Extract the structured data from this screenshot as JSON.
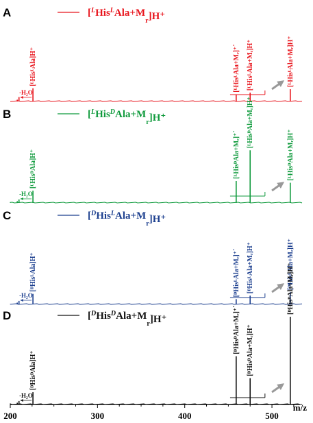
{
  "chart_data": {
    "type": "mass-spectrum",
    "xlim": [
      200,
      540
    ],
    "xticks": [
      200,
      300,
      400,
      500
    ],
    "xlabel": "m/z",
    "panels": [
      {
        "letter": "A",
        "color": "#e8141c",
        "legend": {
          "pre": "[",
          "sup1": "L",
          "mid1": "His",
          "sup2": "L",
          "mid2": "Ala+M",
          "sub": "r",
          "post": "]H⁺"
        },
        "loss_label": "-H₂O",
        "peaks": [
          {
            "mz": 208,
            "intensity": 0.02
          },
          {
            "mz": 210,
            "intensity": 0.05
          },
          {
            "mz": 226,
            "intensity": 0.15,
            "label": "[ᴸHisᴸAla]H⁺"
          },
          {
            "mz": 459,
            "intensity": 0.08,
            "label": "[ᴸHisᴸAla+Mᵣ]⁺˙"
          },
          {
            "mz": 475,
            "intensity": 0.1,
            "label": "[ᴸHisᴸAla+Mᵣ]H⁺"
          },
          {
            "mz": 521,
            "intensity": 0.14,
            "label": "[ᴸHisᴸAla+Mᵣ]H⁺"
          }
        ]
      },
      {
        "letter": "B",
        "color": "#0f9a3c",
        "legend": {
          "pre": "[",
          "sup1": "L",
          "mid1": "His",
          "sup2": "D",
          "mid2": "Ala+M",
          "sub": "r",
          "post": "]H⁺"
        },
        "loss_label": "-H₂O",
        "peaks": [
          {
            "mz": 208,
            "intensity": 0.02
          },
          {
            "mz": 210,
            "intensity": 0.04
          },
          {
            "mz": 226,
            "intensity": 0.14,
            "label": "[ᴸHisᴰAla]H⁺"
          },
          {
            "mz": 459,
            "intensity": 0.25,
            "label": "[ᴸHisᴰAla+Mᵣ]⁺˙"
          },
          {
            "mz": 475,
            "intensity": 0.6,
            "label": "[ᴸHisᴰAla+Mᵣ]H⁺"
          },
          {
            "mz": 521,
            "intensity": 0.23,
            "label": "[ᴸHisᴰAla+Mᵣ]H⁺"
          }
        ]
      },
      {
        "letter": "C",
        "color": "#1b3e8e",
        "legend": {
          "pre": "[",
          "sup1": "D",
          "mid1": "His",
          "sup2": "L",
          "mid2": "Ala+M",
          "sub": "r",
          "post": "]H⁺"
        },
        "loss_label": "-H₂O",
        "peaks": [
          {
            "mz": 208,
            "intensity": 0.02
          },
          {
            "mz": 210,
            "intensity": 0.04
          },
          {
            "mz": 226,
            "intensity": 0.12,
            "label": "[ᴰHisᴸAla]H⁺"
          },
          {
            "mz": 459,
            "intensity": 0.06,
            "label": "[ᴰHisᴸAla+Mᵣ]⁺˙"
          },
          {
            "mz": 475,
            "intensity": 0.1,
            "label": "[ᴰHisᴸAla+Mᵣ]H⁺"
          },
          {
            "mz": 521,
            "intensity": 0.14,
            "label": "[ᴰHisᴸAla+Mᵣ]H⁺"
          }
        ]
      },
      {
        "letter": "D",
        "color": "#111111",
        "legend": {
          "pre": "[",
          "sup1": "D",
          "mid1": "His",
          "sup2": "D",
          "mid2": "Ala+M",
          "sub": "r",
          "post": "]H⁺"
        },
        "loss_label": "-H₂O",
        "peaks": [
          {
            "mz": 208,
            "intensity": 0.02
          },
          {
            "mz": 210,
            "intensity": 0.04
          },
          {
            "mz": 226,
            "intensity": 0.14,
            "label": "[ᴰHisᴰAla]H⁺"
          },
          {
            "mz": 459,
            "intensity": 0.55,
            "label": "[ᴰHisᴰAla+Mᵣ]⁺˙"
          },
          {
            "mz": 475,
            "intensity": 0.3,
            "label": "[ᴰHisᴰAla+Mᵣ]H⁺"
          },
          {
            "mz": 521,
            "intensity": 1.0,
            "label": "[ᴰHisᴰAla+Mᵣ]H⁺"
          }
        ]
      }
    ]
  }
}
